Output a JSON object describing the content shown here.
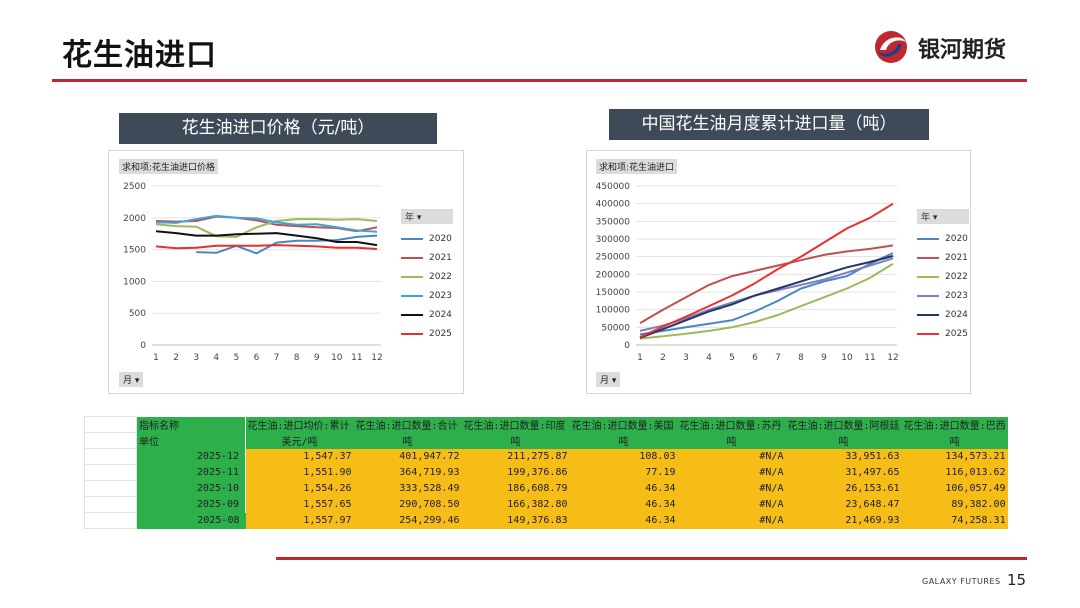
{
  "page": {
    "title": "花生油进口",
    "brand": "银河期货",
    "footer": "GALAXY FUTURES",
    "page_number": "15"
  },
  "chart_data": [
    {
      "type": "line",
      "title": "花生油进口价格（元/吨）",
      "pivot_label": "求和项:花生油进口价格",
      "filter_label": "月",
      "legend_title": "年",
      "categories": [
        "1",
        "2",
        "3",
        "4",
        "5",
        "6",
        "7",
        "8",
        "9",
        "10",
        "11",
        "12"
      ],
      "yticks": [
        "0",
        "500",
        "1000",
        "1500",
        "2000",
        "2500"
      ],
      "ylim": [
        0,
        2500
      ],
      "legend_position": "right",
      "grid": true,
      "series": [
        {
          "name": "2020",
          "color": "#4a86c6",
          "values": [
            null,
            null,
            1460,
            1450,
            1560,
            1440,
            1610,
            1640,
            1640,
            1650,
            1700,
            1720
          ]
        },
        {
          "name": "2021",
          "color": "#c0504d",
          "values": [
            1950,
            1940,
            1950,
            2020,
            2000,
            1960,
            1890,
            1870,
            1850,
            1840,
            1790,
            1850
          ]
        },
        {
          "name": "2022",
          "color": "#9bbb59",
          "values": [
            1900,
            1870,
            1860,
            1710,
            1700,
            1850,
            1950,
            1980,
            1980,
            1970,
            1980,
            1950
          ]
        },
        {
          "name": "2023",
          "color": "#3aa6dd",
          "values": [
            1930,
            1920,
            1980,
            2030,
            2000,
            1990,
            1930,
            1890,
            1900,
            1850,
            1800,
            1780
          ]
        },
        {
          "name": "2024",
          "color": "#111111",
          "values": [
            1790,
            1760,
            1720,
            1720,
            1740,
            1750,
            1760,
            1720,
            1680,
            1620,
            1620,
            1570
          ]
        },
        {
          "name": "2025",
          "color": "#e8312f",
          "values": [
            1550,
            1520,
            1530,
            1560,
            1560,
            1560,
            1570,
            1560,
            1550,
            1530,
            1530,
            1510
          ]
        }
      ]
    },
    {
      "type": "line",
      "title": "中国花生油月度累计进口量（吨）",
      "pivot_label": "求和项:花生油进口",
      "filter_label": "月",
      "legend_title": "年",
      "categories": [
        "1",
        "2",
        "3",
        "4",
        "5",
        "6",
        "7",
        "8",
        "9",
        "10",
        "11",
        "12"
      ],
      "yticks": [
        "0",
        "50000",
        "100000",
        "150000",
        "200000",
        "250000",
        "300000",
        "350000",
        "400000",
        "450000"
      ],
      "ylim": [
        0,
        450000
      ],
      "legend_position": "right",
      "grid": true,
      "series": [
        {
          "name": "2020",
          "color": "#4a86c6",
          "values": [
            30000,
            40000,
            50000,
            60000,
            70000,
            95000,
            125000,
            160000,
            180000,
            195000,
            230000,
            260000
          ]
        },
        {
          "name": "2021",
          "color": "#c0504d",
          "values": [
            62000,
            100000,
            135000,
            170000,
            195000,
            210000,
            225000,
            240000,
            255000,
            265000,
            272000,
            282000
          ]
        },
        {
          "name": "2022",
          "color": "#9bbb59",
          "values": [
            18000,
            25000,
            32000,
            40000,
            50000,
            65000,
            85000,
            110000,
            135000,
            160000,
            190000,
            230000
          ]
        },
        {
          "name": "2023",
          "color": "#7e7ec1",
          "values": [
            40000,
            55000,
            75000,
            100000,
            120000,
            140000,
            155000,
            170000,
            185000,
            205000,
            225000,
            245000
          ]
        },
        {
          "name": "2024",
          "color": "#1f3864",
          "values": [
            20000,
            45000,
            70000,
            95000,
            115000,
            140000,
            160000,
            180000,
            200000,
            220000,
            235000,
            252000
          ]
        },
        {
          "name": "2025",
          "color": "#e8312f",
          "values": [
            22000,
            52000,
            80000,
            110000,
            140000,
            175000,
            215000,
            250000,
            290000,
            330000,
            360000,
            400000
          ]
        }
      ]
    }
  ],
  "table": {
    "header_row1": [
      "指标名称",
      "花生油:进口均价:累计",
      "花生油:进口数量:合计",
      "花生油:进口数量:印度",
      "花生油:进口数量:美国",
      "花生油:进口数量:苏丹",
      "花生油:进口数量:阿根廷",
      "花生油:进口数量:巴西"
    ],
    "header_row2": [
      "单位",
      "美元/吨",
      "吨",
      "吨",
      "吨",
      "吨",
      "吨",
      "吨"
    ],
    "rows": [
      [
        "2025-12",
        "1,547.37",
        "401,947.72",
        "211,275.87",
        "108.03",
        "#N/A",
        "33,951.63",
        "134,573.21"
      ],
      [
        "2025-11",
        "1,551.90",
        "364,719.93",
        "199,376.86",
        "77.19",
        "#N/A",
        "31,497.65",
        "116,013.62"
      ],
      [
        "2025-10",
        "1,554.26",
        "333,528.49",
        "186,608.79",
        "46.34",
        "#N/A",
        "26,153.61",
        "106,057.49"
      ],
      [
        "2025-09",
        "1,557.65",
        "290,708.50",
        "166,382.80",
        "46.34",
        "#N/A",
        "23,648.47",
        "89,382.00"
      ],
      [
        "2025-08",
        "1,557.97",
        "254,299.46",
        "149,376.83",
        "46.34",
        "#N/A",
        "21,469.93",
        "74,258.31"
      ]
    ]
  }
}
